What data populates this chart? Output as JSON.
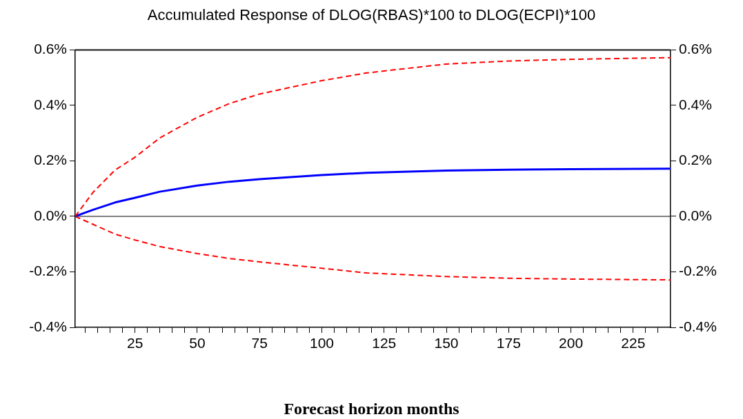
{
  "chart_data": {
    "type": "line",
    "title": "Accumulated Response of DLOG(RBAS)*100 to DLOG(ECPI)*100",
    "xlabel": "Forecast horizon months",
    "x": [
      1,
      8,
      17,
      25,
      35,
      50,
      63,
      75,
      100,
      118,
      150,
      175,
      200,
      240
    ],
    "series": [
      {
        "color": "#ff0000",
        "line_style": "dashed",
        "values": [
          0,
          0.085,
          0.167,
          0.213,
          0.283,
          0.357,
          0.407,
          0.441,
          0.489,
          0.517,
          0.549,
          0.56,
          0.566,
          0.572
        ]
      },
      {
        "color": "#0000ff",
        "line_style": "solid",
        "values": [
          0,
          0.023,
          0.05,
          0.067,
          0.089,
          0.111,
          0.125,
          0.134,
          0.149,
          0.157,
          0.165,
          0.168,
          0.17,
          0.172
        ]
      },
      {
        "color": "#ff0000",
        "line_style": "dashed",
        "values": [
          0,
          -0.028,
          -0.064,
          -0.085,
          -0.109,
          -0.134,
          -0.152,
          -0.164,
          -0.187,
          -0.204,
          -0.217,
          -0.223,
          -0.226,
          -0.229
        ]
      }
    ],
    "xlim": [
      1,
      240
    ],
    "xticks": [
      {
        "value": 5,
        "label": null
      },
      {
        "value": 10,
        "label": null
      },
      {
        "value": 15,
        "label": null
      },
      {
        "value": 20,
        "label": null
      },
      25,
      {
        "value": 30,
        "label": null
      },
      {
        "value": 35,
        "label": null
      },
      {
        "value": 40,
        "label": null
      },
      {
        "value": 45,
        "label": null
      },
      50,
      {
        "value": 55,
        "label": null
      },
      {
        "value": 60,
        "label": null
      },
      {
        "value": 65,
        "label": null
      },
      {
        "value": 70,
        "label": null
      },
      75,
      {
        "value": 80,
        "label": null
      },
      {
        "value": 85,
        "label": null
      },
      {
        "value": 90,
        "label": null
      },
      {
        "value": 95,
        "label": null
      },
      100,
      {
        "value": 105,
        "label": null
      },
      {
        "value": 110,
        "label": null
      },
      {
        "value": 115,
        "label": null
      },
      {
        "value": 120,
        "label": null
      },
      125,
      {
        "value": 130,
        "label": null
      },
      {
        "value": 135,
        "label": null
      },
      {
        "value": 140,
        "label": null
      },
      {
        "value": 145,
        "label": null
      },
      150,
      {
        "value": 155,
        "label": null
      },
      {
        "value": 160,
        "label": null
      },
      {
        "value": 165,
        "label": null
      },
      {
        "value": 170,
        "label": null
      },
      175,
      {
        "value": 180,
        "label": null
      },
      {
        "value": 185,
        "label": null
      },
      {
        "value": 190,
        "label": null
      },
      {
        "value": 195,
        "label": null
      },
      200,
      {
        "value": 205,
        "label": null
      },
      {
        "value": 210,
        "label": null
      },
      {
        "value": 215,
        "label": null
      },
      {
        "value": 220,
        "label": null
      },
      225,
      {
        "value": 230,
        "label": null
      },
      {
        "value": 235,
        "label": null
      }
    ],
    "ylim": [
      -0.4,
      0.6
    ],
    "yticks": [
      {
        "value": -0.4,
        "label": "-0.4%"
      },
      {
        "value": -0.2,
        "label": "-0.2%"
      },
      {
        "value": 0,
        "label": "0.0%"
      },
      {
        "value": 0.2,
        "label": "0.2%"
      },
      {
        "value": 0.4,
        "label": "0.4%"
      },
      {
        "value": 0.6,
        "label": "0.6%"
      }
    ],
    "y2lim": [
      -0.4,
      0.6
    ],
    "y2ticks": [
      {
        "value": -0.4,
        "label": "-0.4%"
      },
      {
        "value": -0.2,
        "label": "-0.2%"
      },
      {
        "value": 0,
        "label": "0.0%"
      },
      {
        "value": 0.2,
        "label": "0.2%"
      },
      {
        "value": 0.4,
        "label": "0.4%"
      },
      {
        "value": 0.6,
        "label": "0.6%"
      }
    ],
    "ref_lines": [
      {
        "axis": "y",
        "value": 0,
        "color": "#000000"
      }
    ],
    "grid": false,
    "legend": false,
    "marker": "none"
  }
}
